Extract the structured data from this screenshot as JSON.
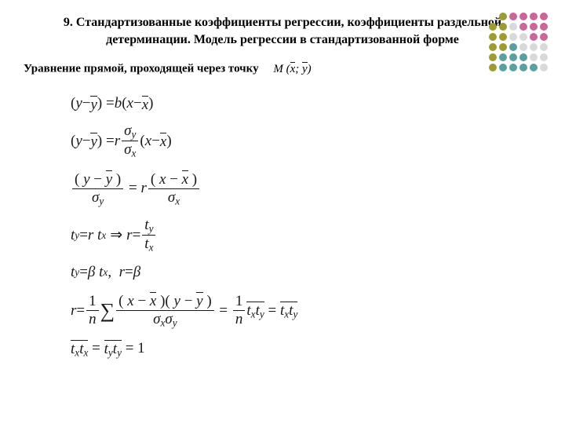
{
  "title_line1": "9. Стандартизованные коэффициенты регрессии, коэффициенты раздельной",
  "title_line2": "детерминации. Модель регрессии в стандартизованной форме",
  "subtitle_prefix": "Уравнение прямой, проходящей через точку",
  "point_expr": "M (x̄; ȳ)",
  "dot_colors": {
    "olive": "#9c9c33",
    "pink": "#cc6699",
    "teal": "#5aa0a0",
    "gray": "#d9d9d9",
    "empty": "transparent"
  },
  "dot_layout": [
    [
      "empty",
      "olive",
      "pink",
      "pink",
      "pink",
      "pink"
    ],
    [
      "olive",
      "olive",
      "gray",
      "pink",
      "pink",
      "pink"
    ],
    [
      "olive",
      "olive",
      "gray",
      "gray",
      "pink",
      "pink"
    ],
    [
      "olive",
      "olive",
      "teal",
      "gray",
      "gray",
      "gray"
    ],
    [
      "olive",
      "teal",
      "teal",
      "teal",
      "gray",
      "gray"
    ],
    [
      "olive",
      "teal",
      "teal",
      "teal",
      "teal",
      "gray"
    ]
  ],
  "colors": {
    "text": "#000000",
    "math": "#1a1a1a",
    "background": "#ffffff"
  },
  "fonts": {
    "title_size_pt": 16,
    "subtitle_size_pt": 15,
    "math_size_pt": 19
  }
}
